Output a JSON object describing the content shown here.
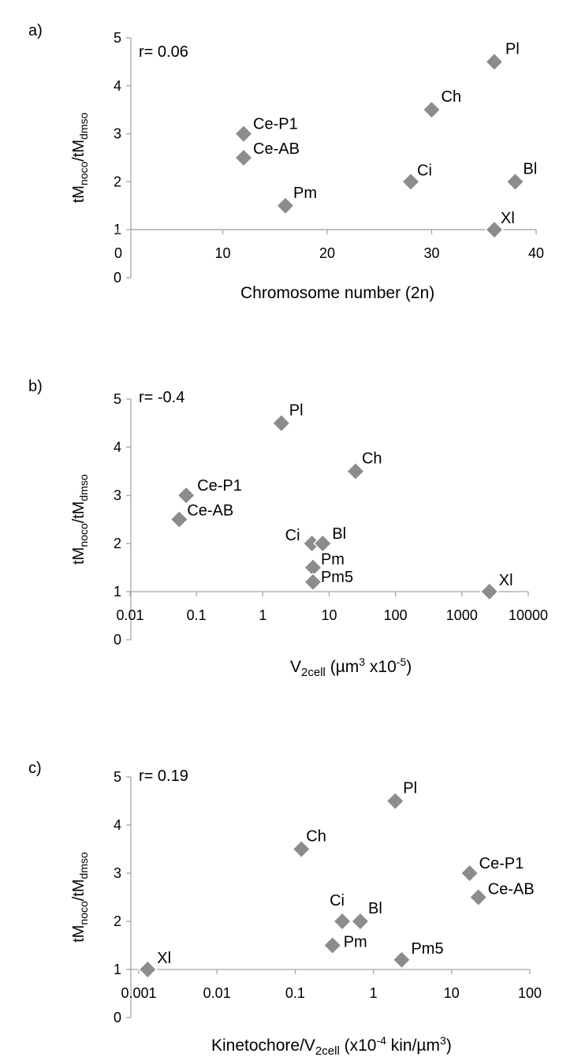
{
  "colors": {
    "marker": "#8c8c8c",
    "marker_stroke": "#ffffff",
    "axis": "#a6a6a6",
    "text": "#000000"
  },
  "chart_data": [
    {
      "type": "scatter",
      "panel_label": "a)",
      "annotation": "r= 0.06",
      "title": "",
      "xlabel": "Chromosome number (2n)",
      "ylabel": {
        "base": "tM",
        "sub1": "noco",
        "sep": "/tM",
        "sub2": "dmso"
      },
      "xscale": "linear",
      "xlim": [
        0,
        40
      ],
      "ylim": [
        0,
        5
      ],
      "x_axis_at_y": 1,
      "x_ticks": [
        "0",
        "10",
        "20",
        "30",
        "40"
      ],
      "x_tick_values": [
        0,
        10,
        20,
        30,
        40
      ],
      "y_ticks": [
        "0",
        "1",
        "2",
        "3",
        "4",
        "5"
      ],
      "y_tick_values": [
        0,
        1,
        2,
        3,
        4,
        5
      ],
      "points": [
        {
          "label": "Pl",
          "x": 36,
          "y": 4.5
        },
        {
          "label": "Ch",
          "x": 30,
          "y": 3.5
        },
        {
          "label": "Ce-P1",
          "x": 12,
          "y": 3.0
        },
        {
          "label": "Ce-AB",
          "x": 12,
          "y": 2.5
        },
        {
          "label": "Ci",
          "x": 28,
          "y": 2.0
        },
        {
          "label": "Bl",
          "x": 38,
          "y": 2.0
        },
        {
          "label": "Pm",
          "x": 16,
          "y": 1.5
        },
        {
          "label": "Xl",
          "x": 36,
          "y": 1.0
        }
      ]
    },
    {
      "type": "scatter",
      "panel_label": "b)",
      "annotation": "r= -0.4",
      "title": "",
      "xlabel": {
        "base": "V",
        "sub": "2cell",
        "rest": " (µm",
        "sup": "3",
        "tail": " x10",
        "sup2": "-5",
        "end": ")"
      },
      "ylabel": {
        "base": "tM",
        "sub1": "noco",
        "sep": "/tM",
        "sub2": "dmso"
      },
      "xscale": "log",
      "xlim": [
        0.01,
        10000
      ],
      "ylim": [
        0,
        5
      ],
      "x_axis_at_y": 1,
      "x_ticks": [
        "0.01",
        "0.1",
        "1",
        "10",
        "100",
        "1000",
        "10000"
      ],
      "x_tick_values": [
        0.01,
        0.1,
        1,
        10,
        100,
        1000,
        10000
      ],
      "y_ticks": [
        "0",
        "1",
        "2",
        "3",
        "4",
        "5"
      ],
      "y_tick_values": [
        0,
        1,
        2,
        3,
        4,
        5
      ],
      "points": [
        {
          "label": "Pl",
          "x": 1.9,
          "y": 4.5
        },
        {
          "label": "Ch",
          "x": 25,
          "y": 3.5
        },
        {
          "label": "Ce-P1",
          "x": 0.07,
          "y": 3.0
        },
        {
          "label": "Ce-AB",
          "x": 0.055,
          "y": 2.5
        },
        {
          "label": "Ci",
          "x": 5.5,
          "y": 2.0
        },
        {
          "label": "Bl",
          "x": 8,
          "y": 2.0
        },
        {
          "label": "Pm",
          "x": 5.7,
          "y": 1.5
        },
        {
          "label": "Pm5",
          "x": 5.7,
          "y": 1.2
        },
        {
          "label": "Xl",
          "x": 2600,
          "y": 1.0
        }
      ]
    },
    {
      "type": "scatter",
      "panel_label": "c)",
      "annotation": "r= 0.19",
      "title": "",
      "xlabel": {
        "base": "Kinetochore/V",
        "sub": "2cell",
        "rest": " (x10",
        "sup": "-4",
        "tail": " kin/µm",
        "sup2": "3",
        "end": ")"
      },
      "ylabel": {
        "base": "tM",
        "sub1": "noco",
        "sep": "/tM",
        "sub2": "dmso"
      },
      "xscale": "log",
      "xlim": [
        0.001,
        100
      ],
      "ylim": [
        0,
        5
      ],
      "x_axis_at_y": 1,
      "x_ticks": [
        "0.001",
        "0.01",
        "0.1",
        "1",
        "10",
        "100"
      ],
      "x_tick_values": [
        0.001,
        0.01,
        0.1,
        1,
        10,
        100
      ],
      "y_ticks": [
        "0",
        "1",
        "2",
        "3",
        "4",
        "5"
      ],
      "y_tick_values": [
        0,
        1,
        2,
        3,
        4,
        5
      ],
      "points": [
        {
          "label": "Pl",
          "x": 1.9,
          "y": 4.5
        },
        {
          "label": "Ch",
          "x": 0.12,
          "y": 3.5
        },
        {
          "label": "Ce-P1",
          "x": 17,
          "y": 3.0
        },
        {
          "label": "Ce-AB",
          "x": 22,
          "y": 2.5
        },
        {
          "label": "Ci",
          "x": 0.4,
          "y": 2.0
        },
        {
          "label": "Bl",
          "x": 0.68,
          "y": 2.0
        },
        {
          "label": "Pm",
          "x": 0.3,
          "y": 1.5
        },
        {
          "label": "Pm5",
          "x": 2.3,
          "y": 1.2
        },
        {
          "label": "Xl",
          "x": 0.0013,
          "y": 1.0
        }
      ]
    }
  ]
}
